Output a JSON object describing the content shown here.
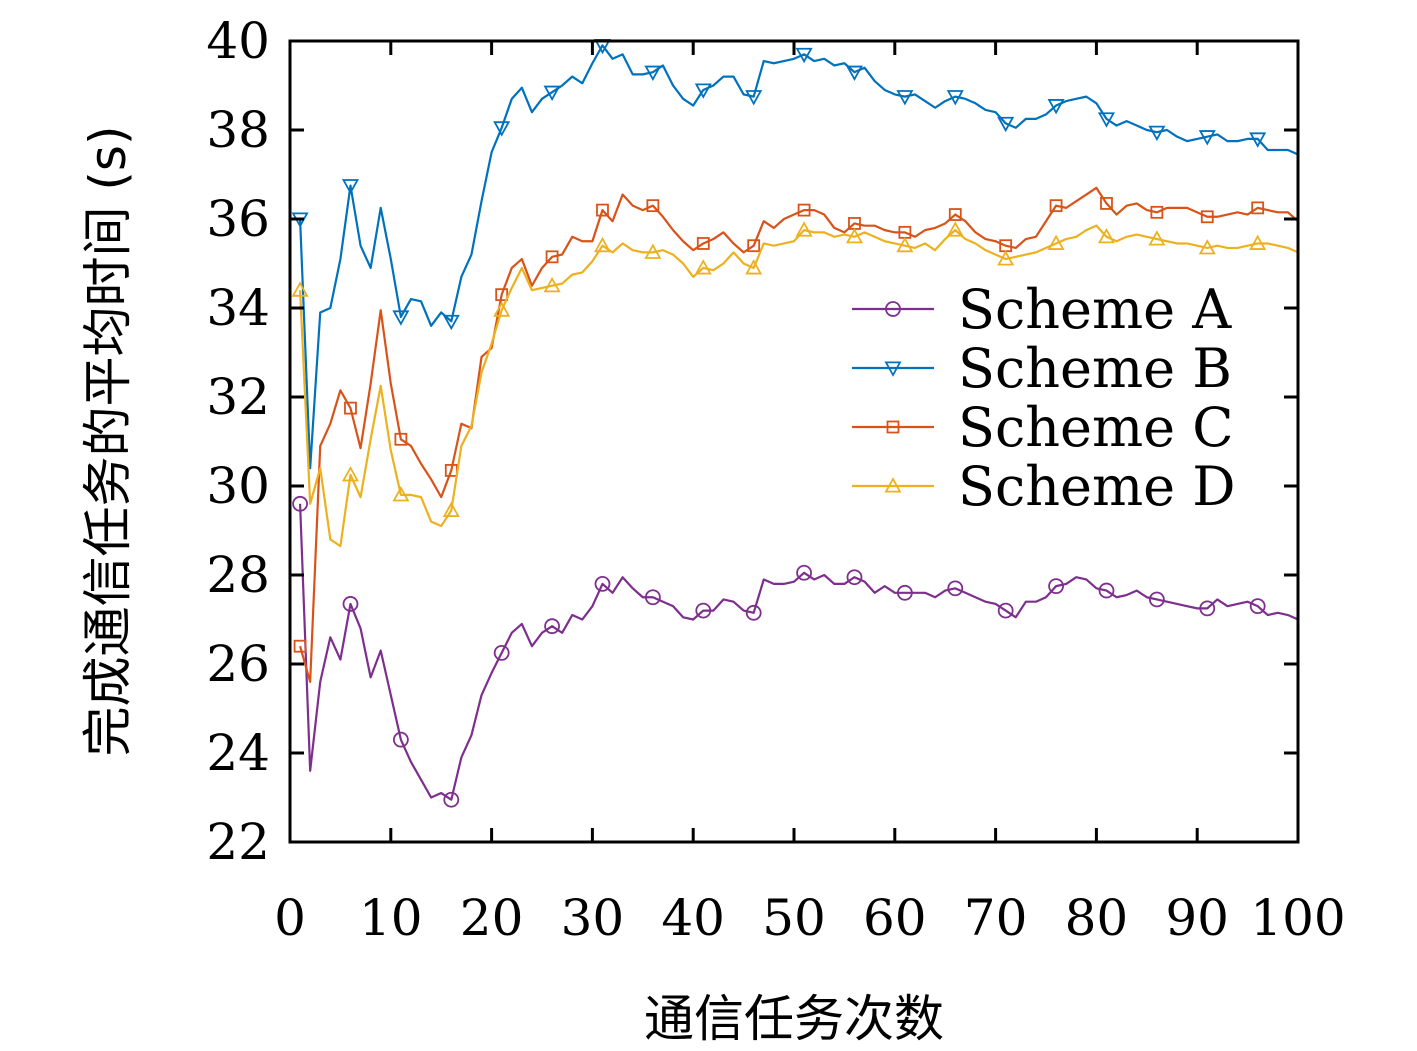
{
  "chart_data": {
    "type": "line",
    "xlabel": "通信任务次数",
    "ylabel": "完成通信任务的平均时间 (s)",
    "xlim": [
      0,
      100
    ],
    "ylim": [
      22,
      40
    ],
    "xticks": [
      0,
      10,
      20,
      30,
      40,
      50,
      60,
      70,
      80,
      90,
      100
    ],
    "yticks": [
      22,
      24,
      26,
      28,
      30,
      32,
      34,
      36,
      38,
      40
    ],
    "legend_position": "right",
    "series": [
      {
        "name": "Scheme A",
        "color": "#7e2f8e",
        "marker": "circle",
        "x": [
          1,
          2,
          3,
          4,
          5,
          6,
          7,
          8,
          9,
          10,
          11,
          12,
          13,
          14,
          15,
          16,
          17,
          18,
          19,
          20,
          21,
          22,
          23,
          24,
          25,
          26,
          27,
          28,
          29,
          30,
          31,
          32,
          33,
          34,
          35,
          36,
          37,
          38,
          39,
          40,
          41,
          42,
          43,
          44,
          45,
          46,
          47,
          48,
          49,
          50,
          51,
          52,
          53,
          54,
          55,
          56,
          57,
          58,
          59,
          60,
          61,
          62,
          63,
          64,
          65,
          66,
          67,
          68,
          69,
          70,
          71,
          72,
          73,
          74,
          75,
          76,
          77,
          78,
          79,
          80,
          81,
          82,
          83,
          84,
          85,
          86,
          87,
          88,
          89,
          90,
          91,
          92,
          93,
          94,
          95,
          96,
          97,
          98,
          99,
          100
        ],
        "values": [
          29.6,
          23.6,
          25.6,
          26.6,
          26.1,
          27.35,
          26.8,
          25.7,
          26.3,
          25.3,
          24.3,
          23.8,
          23.4,
          23.0,
          23.1,
          22.95,
          23.9,
          24.4,
          25.3,
          25.8,
          26.25,
          26.7,
          26.9,
          26.4,
          26.7,
          26.85,
          26.7,
          27.1,
          27.0,
          27.3,
          27.8,
          27.6,
          27.95,
          27.7,
          27.5,
          27.5,
          27.4,
          27.3,
          27.05,
          27.0,
          27.2,
          27.2,
          27.45,
          27.4,
          27.2,
          27.15,
          27.9,
          27.8,
          27.8,
          27.85,
          28.05,
          27.9,
          28.0,
          27.8,
          27.8,
          27.95,
          27.85,
          27.6,
          27.75,
          27.6,
          27.6,
          27.6,
          27.6,
          27.5,
          27.65,
          27.7,
          27.6,
          27.5,
          27.4,
          27.35,
          27.2,
          27.05,
          27.4,
          27.4,
          27.5,
          27.75,
          27.8,
          27.95,
          27.9,
          27.7,
          27.65,
          27.5,
          27.55,
          27.65,
          27.5,
          27.45,
          27.4,
          27.35,
          27.3,
          27.25,
          27.25,
          27.45,
          27.3,
          27.35,
          27.4,
          27.3,
          27.1,
          27.15,
          27.1,
          27.0
        ]
      },
      {
        "name": "Scheme B",
        "color": "#0072bd",
        "marker": "triangle-down",
        "x": [
          1,
          2,
          3,
          4,
          5,
          6,
          7,
          8,
          9,
          10,
          11,
          12,
          13,
          14,
          15,
          16,
          17,
          18,
          19,
          20,
          21,
          22,
          23,
          24,
          25,
          26,
          27,
          28,
          29,
          30,
          31,
          32,
          33,
          34,
          35,
          36,
          37,
          38,
          39,
          40,
          41,
          42,
          43,
          44,
          45,
          46,
          47,
          48,
          49,
          50,
          51,
          52,
          53,
          54,
          55,
          56,
          57,
          58,
          59,
          60,
          61,
          62,
          63,
          64,
          65,
          66,
          67,
          68,
          69,
          70,
          71,
          72,
          73,
          74,
          75,
          76,
          77,
          78,
          79,
          80,
          81,
          82,
          83,
          84,
          85,
          86,
          87,
          88,
          89,
          90,
          91,
          92,
          93,
          94,
          95,
          96,
          97,
          98,
          99,
          100
        ],
        "values": [
          36.0,
          30.4,
          33.9,
          34.0,
          35.1,
          36.75,
          35.4,
          34.9,
          36.25,
          35.1,
          33.8,
          34.2,
          34.15,
          33.6,
          33.9,
          33.7,
          34.7,
          35.2,
          36.4,
          37.5,
          38.05,
          38.7,
          38.95,
          38.4,
          38.7,
          38.85,
          39.0,
          39.2,
          39.05,
          39.5,
          39.9,
          39.6,
          39.7,
          39.25,
          39.25,
          39.3,
          39.45,
          39.0,
          38.7,
          38.55,
          38.9,
          39.0,
          39.2,
          39.2,
          38.8,
          38.75,
          39.55,
          39.5,
          39.55,
          39.6,
          39.7,
          39.55,
          39.6,
          39.45,
          39.5,
          39.3,
          39.4,
          39.1,
          38.9,
          38.8,
          38.75,
          38.8,
          38.65,
          38.5,
          38.65,
          38.75,
          38.7,
          38.6,
          38.45,
          38.4,
          38.15,
          38.05,
          38.25,
          38.25,
          38.35,
          38.55,
          38.65,
          38.7,
          38.75,
          38.6,
          38.25,
          38.1,
          38.2,
          38.1,
          38.0,
          37.95,
          38.0,
          37.85,
          37.75,
          37.8,
          37.85,
          37.9,
          37.75,
          37.75,
          37.8,
          37.8,
          37.55,
          37.55,
          37.55,
          37.45
        ]
      },
      {
        "name": "Scheme C",
        "color": "#d95319",
        "marker": "square",
        "x": [
          1,
          2,
          3,
          4,
          5,
          6,
          7,
          8,
          9,
          10,
          11,
          12,
          13,
          14,
          15,
          16,
          17,
          18,
          19,
          20,
          21,
          22,
          23,
          24,
          25,
          26,
          27,
          28,
          29,
          30,
          31,
          32,
          33,
          34,
          35,
          36,
          37,
          38,
          39,
          40,
          41,
          42,
          43,
          44,
          45,
          46,
          47,
          48,
          49,
          50,
          51,
          52,
          53,
          54,
          55,
          56,
          57,
          58,
          59,
          60,
          61,
          62,
          63,
          64,
          65,
          66,
          67,
          68,
          69,
          70,
          71,
          72,
          73,
          74,
          75,
          76,
          77,
          78,
          79,
          80,
          81,
          82,
          83,
          84,
          85,
          86,
          87,
          88,
          89,
          90,
          91,
          92,
          93,
          94,
          95,
          96,
          97,
          98,
          99,
          100
        ],
        "values": [
          26.4,
          25.6,
          30.9,
          31.4,
          32.15,
          31.75,
          30.85,
          32.3,
          33.95,
          32.3,
          31.05,
          30.9,
          30.5,
          30.15,
          29.75,
          30.35,
          31.4,
          31.3,
          32.9,
          33.1,
          34.3,
          34.9,
          35.1,
          34.5,
          34.9,
          35.15,
          35.2,
          35.6,
          35.5,
          35.5,
          36.2,
          35.95,
          36.55,
          36.3,
          36.2,
          36.3,
          36.05,
          35.75,
          35.5,
          35.3,
          35.45,
          35.55,
          35.7,
          35.45,
          35.25,
          35.4,
          35.95,
          35.8,
          36.0,
          36.1,
          36.2,
          36.2,
          36.1,
          35.8,
          35.7,
          35.9,
          35.85,
          35.85,
          35.75,
          35.7,
          35.7,
          35.6,
          35.75,
          35.8,
          35.9,
          36.1,
          35.95,
          35.7,
          35.55,
          35.5,
          35.4,
          35.35,
          35.55,
          35.6,
          35.95,
          36.3,
          36.25,
          36.4,
          36.55,
          36.7,
          36.35,
          36.1,
          36.3,
          36.35,
          36.2,
          36.15,
          36.25,
          36.25,
          36.25,
          36.15,
          36.05,
          36.05,
          36.1,
          36.15,
          36.1,
          36.25,
          36.2,
          36.15,
          36.15,
          35.95
        ]
      },
      {
        "name": "Scheme D",
        "color": "#edb120",
        "marker": "triangle-up",
        "x": [
          1,
          2,
          3,
          4,
          5,
          6,
          7,
          8,
          9,
          10,
          11,
          12,
          13,
          14,
          15,
          16,
          17,
          18,
          19,
          20,
          21,
          22,
          23,
          24,
          25,
          26,
          27,
          28,
          29,
          30,
          31,
          32,
          33,
          34,
          35,
          36,
          37,
          38,
          39,
          40,
          41,
          42,
          43,
          44,
          45,
          46,
          47,
          48,
          49,
          50,
          51,
          52,
          53,
          54,
          55,
          56,
          57,
          58,
          59,
          60,
          61,
          62,
          63,
          64,
          65,
          66,
          67,
          68,
          69,
          70,
          71,
          72,
          73,
          74,
          75,
          76,
          77,
          78,
          79,
          80,
          81,
          82,
          83,
          84,
          85,
          86,
          87,
          88,
          89,
          90,
          91,
          92,
          93,
          94,
          95,
          96,
          97,
          98,
          99,
          100
        ],
        "values": [
          34.4,
          29.6,
          30.4,
          28.8,
          28.65,
          30.25,
          29.75,
          31.05,
          32.25,
          30.8,
          29.8,
          29.8,
          29.75,
          29.2,
          29.1,
          29.45,
          30.9,
          31.35,
          32.55,
          33.2,
          33.95,
          34.45,
          34.9,
          34.4,
          34.45,
          34.5,
          34.55,
          34.75,
          34.8,
          35.05,
          35.4,
          35.25,
          35.45,
          35.3,
          35.25,
          35.25,
          35.3,
          35.2,
          35.0,
          34.7,
          34.9,
          34.85,
          35.0,
          35.25,
          35.0,
          34.9,
          35.45,
          35.4,
          35.45,
          35.5,
          35.75,
          35.7,
          35.7,
          35.6,
          35.65,
          35.6,
          35.7,
          35.6,
          35.5,
          35.45,
          35.4,
          35.35,
          35.45,
          35.3,
          35.55,
          35.75,
          35.55,
          35.45,
          35.3,
          35.2,
          35.1,
          35.15,
          35.2,
          35.25,
          35.35,
          35.45,
          35.55,
          35.6,
          35.75,
          35.85,
          35.6,
          35.5,
          35.6,
          35.65,
          35.6,
          35.55,
          35.5,
          35.45,
          35.45,
          35.4,
          35.35,
          35.4,
          35.35,
          35.35,
          35.4,
          35.45,
          35.45,
          35.4,
          35.35,
          35.25
        ]
      }
    ]
  }
}
